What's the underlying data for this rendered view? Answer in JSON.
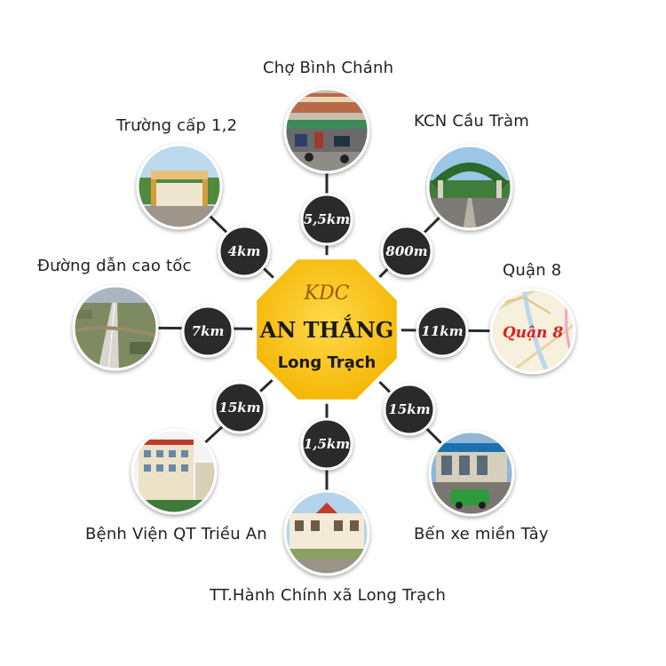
{
  "center": {
    "line1": "KDC",
    "line2": "AN THẮNG",
    "line3": "Long Trạch",
    "color": "#ffc823"
  },
  "spokes": [
    {
      "id": "cho-binh-chanh",
      "label": "Chợ Bình Chánh",
      "distance": "5,5km",
      "photo": "market-photo"
    },
    {
      "id": "kcn-cau-tram",
      "label": "KCN Cầu Tràm",
      "distance": "800m",
      "photo": "industrial-gate-photo"
    },
    {
      "id": "quan-8",
      "label": "Quận 8",
      "distance": "11km",
      "photo": "district-map-photo",
      "photo_text": "Quận 8"
    },
    {
      "id": "ben-xe-mien-tay",
      "label": "Bến xe miền Tây",
      "distance": "15km",
      "photo": "bus-station-photo"
    },
    {
      "id": "tt-hanh-chinh",
      "label": "TT.Hành Chính xã Long Trạch",
      "distance": "1,5km",
      "photo": "admin-center-photo"
    },
    {
      "id": "benh-vien",
      "label": "Bệnh Viện QT Triều An",
      "distance": "15km",
      "photo": "hospital-photo"
    },
    {
      "id": "duong-cao-toc",
      "label": "Đường dẫn cao tốc",
      "distance": "7km",
      "photo": "highway-photo"
    },
    {
      "id": "truong-cap",
      "label": "Trường cấp 1,2",
      "distance": "4km",
      "photo": "school-photo"
    }
  ],
  "colors": {
    "spoke": "#2b2b2b",
    "badge": "#2b2b2b",
    "badge_border": "#ffffff"
  }
}
